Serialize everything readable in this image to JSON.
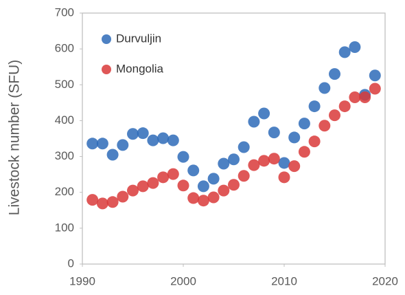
{
  "chart_data": {
    "type": "scatter",
    "y_label": "Livestock number (SFU)",
    "x": [
      1991,
      1992,
      1993,
      1994,
      1995,
      1996,
      1997,
      1998,
      1999,
      2000,
      2001,
      2002,
      2003,
      2004,
      2005,
      2006,
      2007,
      2008,
      2009,
      2010,
      2011,
      2012,
      2013,
      2014,
      2015,
      2016,
      2017,
      2018,
      2019
    ],
    "series": [
      {
        "name": "Durvuljin",
        "color": "#2e6bb8",
        "values": [
          336,
          336,
          305,
          332,
          363,
          365,
          345,
          351,
          345,
          299,
          261,
          217,
          238,
          280,
          292,
          326,
          397,
          420,
          367,
          282,
          353,
          392,
          440,
          491,
          530,
          591,
          605,
          472,
          526
        ]
      },
      {
        "name": "Mongolia",
        "color": "#d93a3a",
        "values": [
          179,
          169,
          173,
          188,
          205,
          217,
          226,
          242,
          251,
          219,
          184,
          177,
          186,
          205,
          221,
          246,
          276,
          288,
          294,
          242,
          273,
          313,
          342,
          386,
          415,
          440,
          465,
          465,
          489
        ]
      }
    ],
    "xlim": [
      1990,
      2020
    ],
    "xticks": [
      1990,
      2000,
      2010,
      2020
    ],
    "ylim": [
      0,
      700
    ],
    "yticks": [
      0,
      100,
      200,
      300,
      400,
      500,
      600,
      700
    ],
    "legend": "upper-left"
  }
}
